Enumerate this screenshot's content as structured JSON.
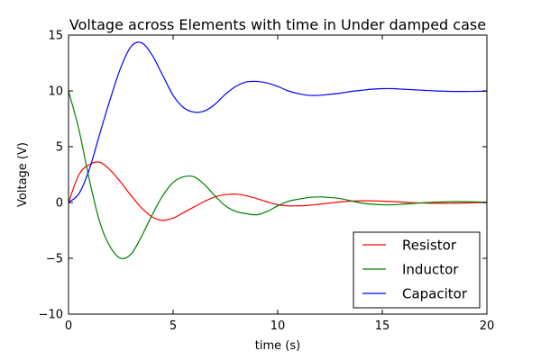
{
  "chart_data": {
    "type": "line",
    "title": "Voltage across Elements with time in Under damped case",
    "xlabel": "time (s)",
    "ylabel": "Voltage (V)",
    "xlim": [
      0,
      20
    ],
    "ylim": [
      -10,
      15
    ],
    "xticks": [
      0,
      5,
      10,
      15,
      20
    ],
    "xtick_labels": [
      "0",
      "5",
      "10",
      "15",
      "20"
    ],
    "yticks": [
      -10,
      -5,
      0,
      5,
      10,
      15
    ],
    "ytick_labels": [
      "−10",
      "−5",
      "0",
      "5",
      "10",
      "15"
    ],
    "grid": false,
    "legend_position": "lower-right",
    "x": [
      0,
      0.5,
      1,
      1.5,
      2,
      2.5,
      3,
      3.5,
      4,
      4.5,
      5,
      5.5,
      6,
      6.5,
      7,
      7.5,
      8,
      8.5,
      9,
      9.5,
      10,
      10.5,
      11,
      11.5,
      12,
      12.5,
      13,
      13.5,
      14,
      14.5,
      15,
      15.5,
      16,
      16.5,
      17,
      17.5,
      18,
      18.5,
      19,
      19.5,
      20
    ],
    "series": [
      {
        "name": "Resistor",
        "color": "#ff0000",
        "values": [
          0,
          2.5,
          3.4,
          3.6,
          2.9,
          1.8,
          0.6,
          -0.5,
          -1.3,
          -1.6,
          -1.4,
          -0.9,
          -0.4,
          0.1,
          0.5,
          0.7,
          0.75,
          0.6,
          0.35,
          0.05,
          -0.2,
          -0.3,
          -0.3,
          -0.25,
          -0.15,
          -0.05,
          0.05,
          0.12,
          0.15,
          0.15,
          0.12,
          0.08,
          0.03,
          -0.02,
          -0.05,
          -0.07,
          -0.07,
          -0.06,
          -0.04,
          -0.02,
          0
        ]
      },
      {
        "name": "Inductor",
        "color": "#008000",
        "values": [
          10,
          6.5,
          2.0,
          -1.8,
          -4.0,
          -5.0,
          -4.6,
          -3.0,
          -1.1,
          0.6,
          1.8,
          2.3,
          2.3,
          1.6,
          0.6,
          -0.3,
          -0.8,
          -1.0,
          -1.1,
          -0.8,
          -0.3,
          0.1,
          0.3,
          0.45,
          0.5,
          0.45,
          0.35,
          0.15,
          -0.05,
          -0.15,
          -0.2,
          -0.2,
          -0.15,
          -0.08,
          -0.02,
          0.03,
          0.06,
          0.08,
          0.07,
          0.05,
          0.02
        ]
      },
      {
        "name": "Capacitor",
        "color": "#0000ff",
        "values": [
          0,
          0.8,
          3.0,
          6.2,
          9.3,
          12.1,
          14.0,
          14.3,
          13.2,
          11.4,
          9.6,
          8.5,
          8.1,
          8.2,
          8.8,
          9.7,
          10.4,
          10.8,
          10.85,
          10.7,
          10.4,
          10.0,
          9.75,
          9.6,
          9.6,
          9.7,
          9.8,
          9.95,
          10.05,
          10.15,
          10.2,
          10.2,
          10.15,
          10.1,
          10.05,
          10.0,
          9.97,
          9.95,
          9.95,
          9.96,
          9.98
        ]
      }
    ]
  }
}
